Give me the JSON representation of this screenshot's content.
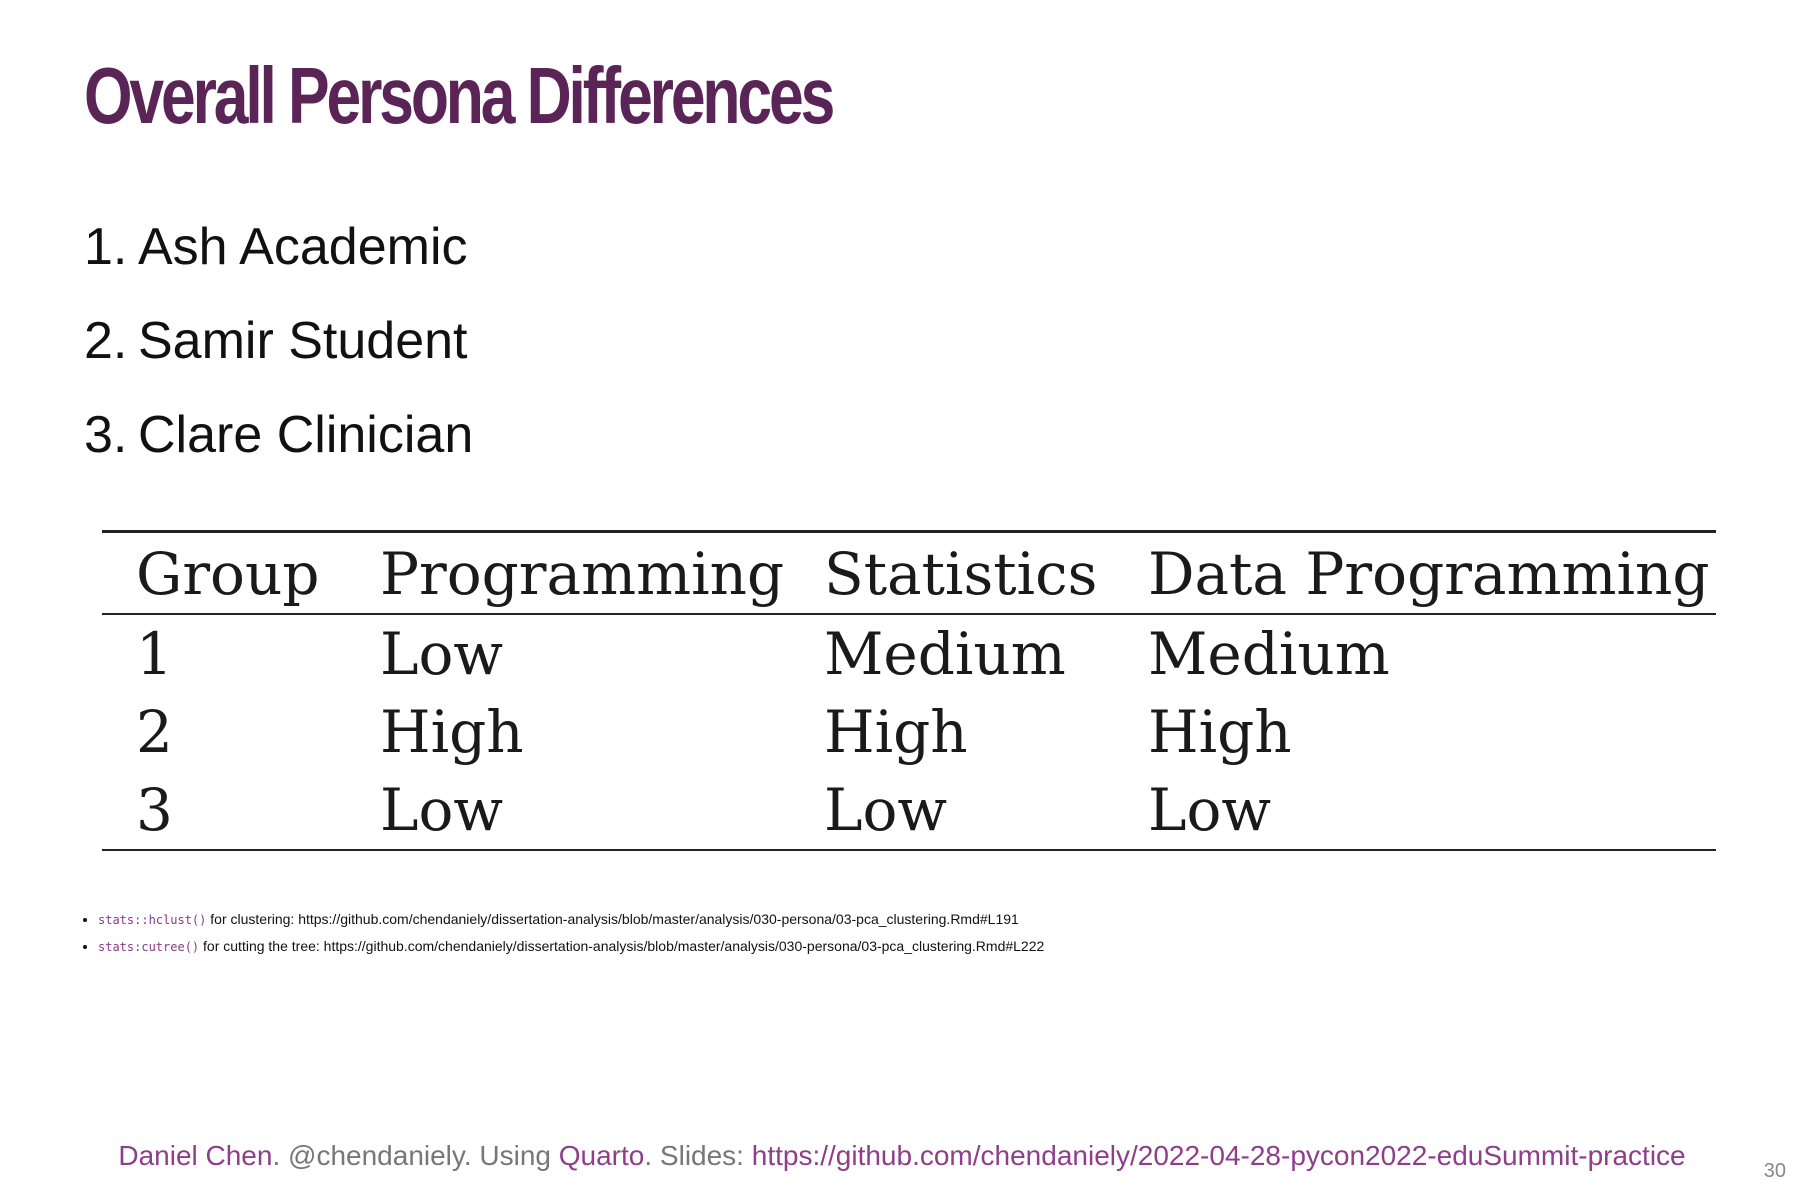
{
  "slide": {
    "title": "Overall Persona Differences",
    "number": "30"
  },
  "personas": [
    {
      "num": "1.",
      "name": "Ash Academic"
    },
    {
      "num": "2.",
      "name": "Samir Student"
    },
    {
      "num": "3.",
      "name": "Clare Clinician"
    }
  ],
  "table": {
    "headers": [
      "Group",
      "Programming",
      "Statistics",
      "Data Programming"
    ],
    "rows": [
      [
        "1",
        "Low",
        "Medium",
        "Medium"
      ],
      [
        "2",
        "High",
        "High",
        "High"
      ],
      [
        "3",
        "Low",
        "Low",
        "Low"
      ]
    ]
  },
  "notes": [
    {
      "code": "stats::hclust()",
      "text": " for clustering: https://github.com/chendaniely/dissertation-analysis/blob/master/analysis/030-persona/03-pca_clustering.Rmd#L191"
    },
    {
      "code": "stats:cutree()",
      "text": " for cutting the tree: https://github.com/chendaniely/dissertation-analysis/blob/master/analysis/030-persona/03-pca_clustering.Rmd#L222"
    }
  ],
  "footer": {
    "author": "Daniel Chen",
    "sep1": ". @chendaniely. Using ",
    "tool": "Quarto",
    "sep2": ". Slides: ",
    "slides_url": "https://github.com/chendaniely/2022-04-28-pycon2022-eduSummit-practice"
  },
  "colors": {
    "title": "#5a2457",
    "link": "#8e3e8b",
    "muted": "#777777"
  }
}
